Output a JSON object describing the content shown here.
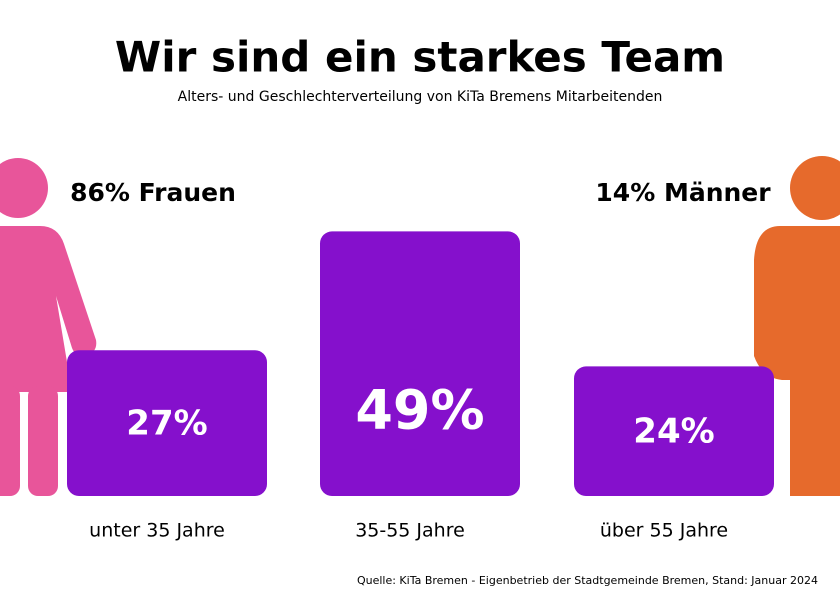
{
  "chart_data": {
    "type": "bar",
    "title": "Wir sind ein starkes Team",
    "subtitle": "Alters- und Geschlechterverteilung von KiTa Bremens Mitarbeitenden",
    "categories": [
      "unter 35 Jahre",
      "35-55 Jahre",
      "über 55 Jahre"
    ],
    "values": [
      27,
      49,
      24
    ],
    "value_labels": [
      "27%",
      "49%",
      "24%"
    ],
    "color": "#8510cc",
    "annotations": [
      "86% Frauen",
      "14% Männer"
    ],
    "source": "Quelle: KiTa Bremen - Eigenbetrieb der Stadtgemeinde Bremen, Stand: Januar 2024"
  }
}
